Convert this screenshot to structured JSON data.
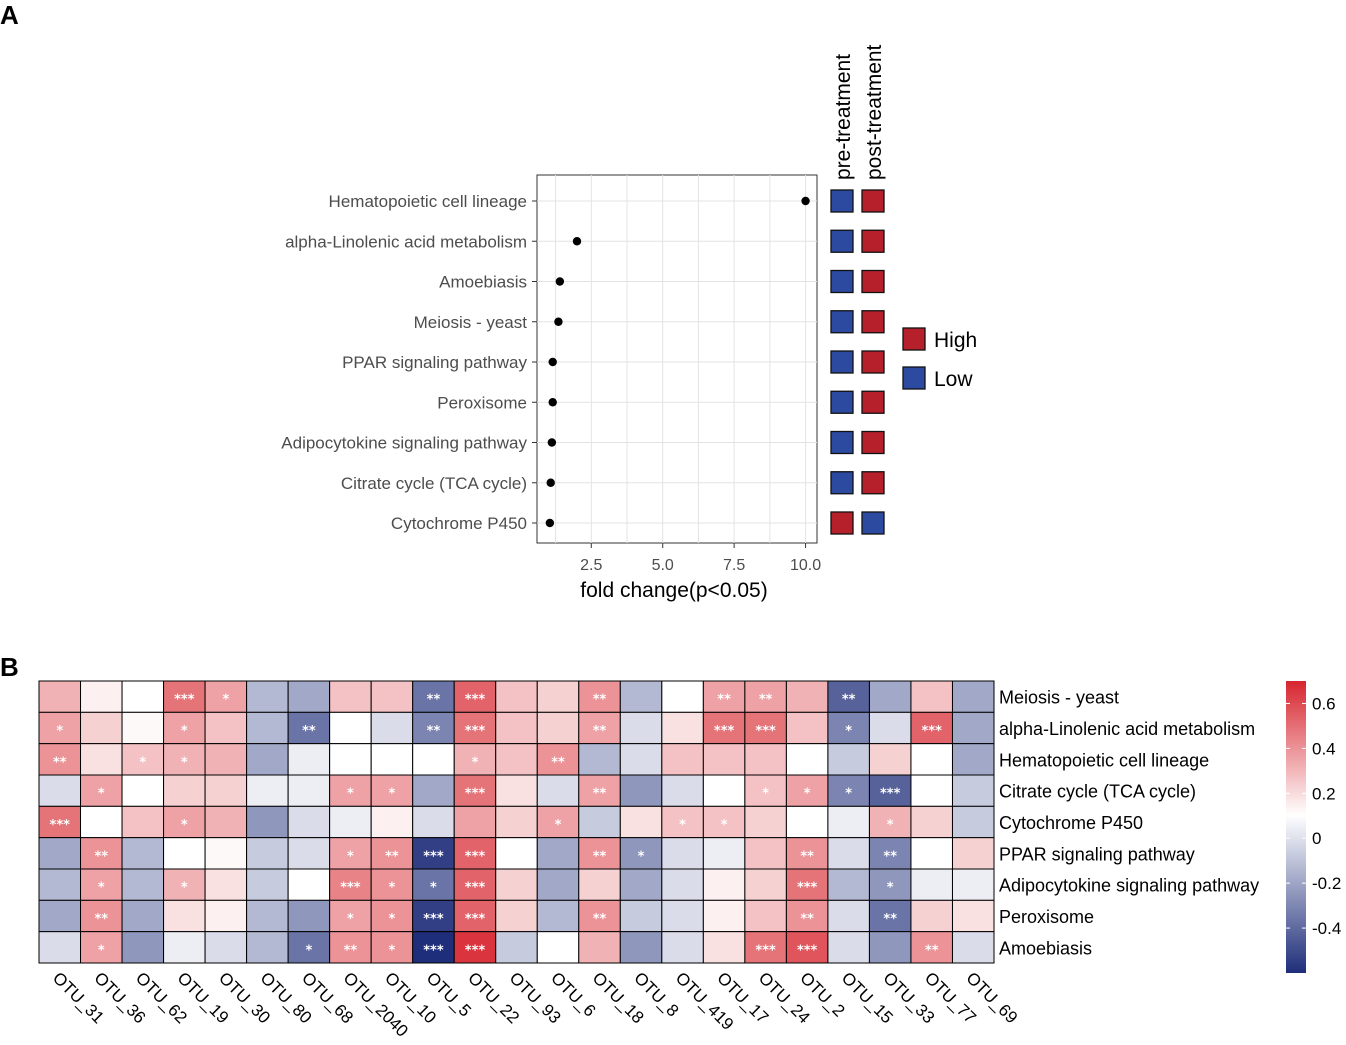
{
  "panels": {
    "a": "A",
    "b": "B"
  },
  "colors": {
    "high": "#b5202a",
    "low": "#2b4aa0",
    "pos": "#d7262f",
    "neg": "#1f2e7a",
    "mid": "#ffffff"
  },
  "chart_data": [
    {
      "type": "scatter",
      "panel": "A",
      "title": "",
      "xlabel": "fold change(p<0.05)",
      "ylabel": "",
      "xlim": [
        0.6,
        10.4
      ],
      "xticks": [
        2.5,
        5.0,
        7.5,
        10.0
      ],
      "xtick_labels": [
        "2.5",
        "5.0",
        "7.5",
        "10.0"
      ],
      "categories": [
        "Hematopoietic cell lineage",
        "alpha-Linolenic acid metabolism",
        "Amoebiasis",
        "Meiosis - yeast",
        "PPAR signaling pathway",
        "Peroxisome",
        "Adipocytokine signaling pathway",
        "Citrate cycle (TCA cycle)",
        "Cytochrome P450"
      ],
      "values": [
        10.0,
        2.0,
        1.4,
        1.35,
        1.15,
        1.15,
        1.12,
        1.08,
        1.05
      ],
      "group_headers": [
        "pre-treatment",
        "post-treatment"
      ],
      "group_levels": [
        [
          "Low",
          "High"
        ],
        [
          "Low",
          "High"
        ],
        [
          "Low",
          "High"
        ],
        [
          "Low",
          "High"
        ],
        [
          "Low",
          "High"
        ],
        [
          "Low",
          "High"
        ],
        [
          "Low",
          "High"
        ],
        [
          "Low",
          "High"
        ],
        [
          "High",
          "Low"
        ]
      ],
      "legend": [
        {
          "label": "High",
          "color": "#b5202a"
        },
        {
          "label": "Low",
          "color": "#2b4aa0"
        }
      ],
      "grid": true
    },
    {
      "type": "heatmap",
      "panel": "B",
      "rows": [
        "Meiosis - yeast",
        "alpha-Linolenic acid metabolism",
        "Hematopoietic cell lineage",
        "Citrate cycle (TCA cycle)",
        "Cytochrome P450",
        "PPAR signaling pathway",
        "Adipocytokine signaling pathway",
        "Peroxisome",
        "Amoebiasis"
      ],
      "columns": [
        "OTU_31",
        "OTU_36",
        "OTU_62",
        "OTU_19",
        "OTU_30",
        "OTU_80",
        "OTU_68",
        "OTU_2040",
        "OTU_10",
        "OTU_5",
        "OTU_22",
        "OTU_93",
        "OTU_6",
        "OTU_18",
        "OTU_8",
        "OTU_419",
        "OTU_17",
        "OTU_24",
        "OTU_2",
        "OTU_15",
        "OTU_33",
        "OTU_77",
        "OTU_69"
      ],
      "values": [
        [
          0.25,
          0.05,
          0.0,
          0.45,
          0.3,
          -0.2,
          -0.25,
          0.2,
          0.2,
          -0.4,
          0.5,
          0.2,
          0.15,
          0.35,
          -0.2,
          0.0,
          0.3,
          0.3,
          0.25,
          -0.45,
          -0.25,
          0.2,
          -0.25
        ],
        [
          0.3,
          0.15,
          0.02,
          0.3,
          0.2,
          -0.2,
          -0.4,
          0.0,
          -0.1,
          -0.35,
          0.45,
          0.2,
          0.15,
          0.3,
          -0.1,
          0.1,
          0.45,
          0.45,
          0.2,
          -0.35,
          -0.1,
          0.5,
          -0.25
        ],
        [
          0.35,
          0.1,
          0.2,
          0.25,
          0.25,
          -0.25,
          -0.05,
          0.0,
          0.0,
          0.0,
          0.25,
          0.2,
          0.35,
          -0.2,
          -0.1,
          0.2,
          0.2,
          0.2,
          0.0,
          -0.15,
          0.15,
          0.0,
          -0.25
        ],
        [
          -0.1,
          0.3,
          0.0,
          0.15,
          0.15,
          -0.05,
          -0.05,
          0.3,
          0.3,
          -0.25,
          0.45,
          0.1,
          -0.1,
          0.3,
          -0.3,
          -0.1,
          0.0,
          0.2,
          0.3,
          -0.35,
          -0.45,
          0.0,
          -0.15
        ],
        [
          0.45,
          0.0,
          0.2,
          0.3,
          0.25,
          -0.3,
          -0.1,
          -0.05,
          0.05,
          -0.1,
          0.3,
          0.15,
          0.3,
          -0.15,
          0.1,
          0.2,
          0.2,
          0.15,
          0.0,
          -0.05,
          0.25,
          0.15,
          -0.15
        ],
        [
          -0.25,
          0.35,
          -0.2,
          0.0,
          0.02,
          -0.15,
          -0.1,
          0.3,
          0.35,
          -0.55,
          0.5,
          0.0,
          -0.25,
          0.35,
          -0.3,
          -0.1,
          -0.05,
          0.2,
          0.35,
          -0.1,
          -0.35,
          0.0,
          0.15
        ],
        [
          -0.2,
          0.3,
          -0.2,
          0.25,
          0.1,
          -0.15,
          0.0,
          0.4,
          0.35,
          -0.4,
          0.5,
          0.15,
          -0.25,
          0.15,
          -0.25,
          -0.1,
          0.05,
          0.15,
          0.45,
          -0.2,
          -0.3,
          -0.05,
          -0.05
        ],
        [
          -0.25,
          0.35,
          -0.25,
          0.1,
          0.05,
          -0.2,
          -0.3,
          0.3,
          0.35,
          -0.55,
          0.5,
          0.15,
          -0.2,
          0.35,
          -0.15,
          -0.1,
          0.05,
          0.2,
          0.35,
          -0.1,
          -0.4,
          0.15,
          0.1
        ],
        [
          -0.1,
          0.3,
          -0.3,
          -0.05,
          -0.1,
          -0.2,
          -0.4,
          0.35,
          0.35,
          -0.6,
          0.65,
          -0.15,
          0.0,
          0.25,
          -0.3,
          -0.1,
          0.1,
          0.45,
          0.55,
          -0.1,
          -0.3,
          0.35,
          -0.1
        ]
      ],
      "stars": [
        [
          "",
          "",
          "",
          "***",
          "*",
          "",
          "",
          "",
          "",
          "**",
          "***",
          "",
          "",
          "**",
          "",
          "",
          "**",
          "**",
          "",
          "**",
          "",
          "",
          ""
        ],
        [
          "*",
          "",
          "",
          "*",
          "",
          "",
          "**",
          "",
          "",
          "**",
          "***",
          "",
          "",
          "**",
          "",
          "",
          "***",
          "***",
          "",
          "*",
          "",
          "***",
          ""
        ],
        [
          "**",
          "",
          "*",
          "*",
          "",
          "",
          "",
          "",
          "",
          "",
          "*",
          "",
          "**",
          "",
          "",
          "",
          "",
          "",
          "",
          "",
          "",
          "",
          ""
        ],
        [
          "",
          "*",
          "",
          "",
          "",
          "",
          "",
          "*",
          "*",
          "",
          "***",
          "",
          "",
          "**",
          "",
          "",
          "",
          "*",
          "*",
          "*",
          "***",
          "",
          ""
        ],
        [
          "***",
          "",
          "",
          "*",
          "",
          "",
          "",
          "",
          "",
          "",
          "",
          "",
          "*",
          "",
          "",
          "*",
          "*",
          "",
          "",
          "",
          "*",
          "",
          ""
        ],
        [
          "",
          "**",
          "",
          "",
          "",
          "",
          "",
          "*",
          "**",
          "***",
          "***",
          "",
          "",
          "**",
          "*",
          "",
          "",
          "",
          "**",
          "",
          "**",
          "",
          ""
        ],
        [
          "",
          "*",
          "",
          "*",
          "",
          "",
          "",
          "***",
          "*",
          "*",
          "***",
          "",
          "",
          "",
          "",
          "",
          "",
          "",
          "***",
          "",
          "*",
          "",
          ""
        ],
        [
          "",
          "**",
          "",
          "",
          "",
          "",
          "",
          "*",
          "*",
          "***",
          "***",
          "",
          "",
          "**",
          "",
          "",
          "",
          "",
          "**",
          "",
          "**",
          "",
          ""
        ],
        [
          "",
          "*",
          "",
          "",
          "",
          "",
          "*",
          "**",
          "*",
          "***",
          "***",
          "",
          "",
          "",
          "",
          "",
          "",
          "***",
          "***",
          "",
          "",
          "**",
          ""
        ]
      ],
      "colorbar": {
        "range": [
          -0.6,
          0.7
        ],
        "ticks": [
          0.6,
          0.4,
          0.2,
          0,
          -0.2,
          -0.4
        ],
        "tick_labels": [
          "0.6",
          "0.4",
          "0.2",
          "0",
          "-0.2",
          "-0.4"
        ]
      }
    }
  ]
}
